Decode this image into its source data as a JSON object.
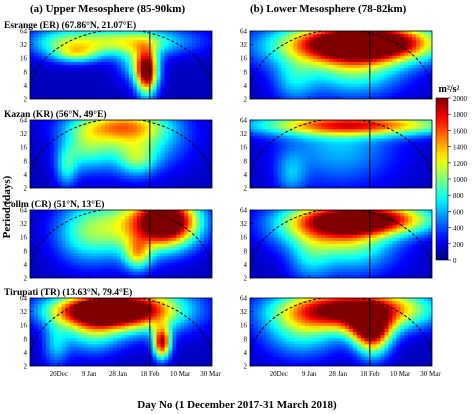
{
  "figure": {
    "column_titles": [
      "(a) Upper Mesosphere (85-90km)",
      "(b) Lower Mesosphere (78-82km)"
    ],
    "ylabel": "Period (days)",
    "xlabel": "Day No (1 December 2017-31 March 2018)",
    "colorbar": {
      "unit": "m²/s²",
      "min": 0,
      "max": 2000,
      "ticks": [
        "0",
        "200",
        "400",
        "600",
        "800",
        "1000",
        "1200",
        "1400",
        "1600",
        "1800",
        "2000"
      ],
      "colors": [
        "#00007f",
        "#0000ff",
        "#007fff",
        "#00ffff",
        "#7fff7f",
        "#ffff00",
        "#ff7f00",
        "#ff0000",
        "#7f0000"
      ]
    }
  },
  "chart_data": {
    "type": "heatmap",
    "x_axis": {
      "range": [
        "1 Dec 2017",
        "31 Mar 2018"
      ],
      "ticks": [
        "20Dec",
        "9 Jan",
        "28 Jan",
        "18 Feb",
        "10 Mar",
        "30 Mar"
      ],
      "tick_days": [
        20,
        40,
        59,
        80,
        100,
        120
      ],
      "marker_line": "18 Feb"
    },
    "y_axis": {
      "scale": "log2",
      "range": [
        2,
        64
      ],
      "ticks": [
        "2",
        "4",
        "8",
        "16",
        "32",
        "64"
      ],
      "tick_values": [
        2,
        4,
        8,
        16,
        32,
        64
      ]
    },
    "panels": [
      {
        "column": "a",
        "row": 1,
        "station": "Esrange (ER) (67.86°N, 21.07°E)",
        "blobs": [
          {
            "day": 62,
            "period": 38,
            "amp": 1000,
            "sd": 30,
            "sp": 0.18
          },
          {
            "day": 32,
            "period": 20,
            "amp": 650,
            "sd": 11,
            "sp": 0.12
          },
          {
            "day": 22,
            "period": 36,
            "amp": 480,
            "sd": 16,
            "sp": 0.2
          },
          {
            "day": 78,
            "period": 7.5,
            "amp": 1750,
            "sd": 5,
            "sp": 0.28
          },
          {
            "day": 72,
            "period": 13,
            "amp": 600,
            "sd": 9,
            "sp": 0.25
          }
        ]
      },
      {
        "column": "a",
        "row": 2,
        "station": "Kazan (KR) (56°N, 49°E)",
        "blobs": [
          {
            "day": 68,
            "period": 26,
            "amp": 900,
            "sd": 22,
            "sp": 0.4
          },
          {
            "day": 58,
            "period": 48,
            "amp": 700,
            "sd": 22,
            "sp": 0.18
          },
          {
            "day": 36,
            "period": 16,
            "amp": 560,
            "sd": 11,
            "sp": 0.3
          },
          {
            "day": 25,
            "period": 5.5,
            "amp": 520,
            "sd": 5,
            "sp": 0.25
          },
          {
            "day": 72,
            "period": 8,
            "amp": 450,
            "sd": 8,
            "sp": 0.2
          }
        ]
      },
      {
        "column": "a",
        "row": 3,
        "station": "Collm (CR) (51°N, 13°E)",
        "blobs": [
          {
            "day": 92,
            "period": 36,
            "amp": 2000,
            "sd": 14,
            "sp": 0.3
          },
          {
            "day": 68,
            "period": 28,
            "amp": 950,
            "sd": 22,
            "sp": 0.4
          },
          {
            "day": 36,
            "period": 20,
            "amp": 550,
            "sd": 14,
            "sp": 0.4
          },
          {
            "day": 72,
            "period": 6.5,
            "amp": 800,
            "sd": 6,
            "sp": 0.2
          }
        ]
      },
      {
        "column": "a",
        "row": 4,
        "station": "Tirupati (TR) (13.63°N, 79.4°E)",
        "blobs": [
          {
            "day": 48,
            "period": 34,
            "amp": 1800,
            "sd": 24,
            "sp": 0.2
          },
          {
            "day": 70,
            "period": 36,
            "amp": 1200,
            "sd": 26,
            "sp": 0.3
          },
          {
            "day": 88,
            "period": 6.5,
            "amp": 1700,
            "sd": 4,
            "sp": 0.2
          },
          {
            "day": 42,
            "period": 12,
            "amp": 650,
            "sd": 14,
            "sp": 0.3
          },
          {
            "day": 18,
            "period": 6,
            "amp": 450,
            "sd": 6,
            "sp": 0.3
          }
        ]
      },
      {
        "column": "b",
        "row": 1,
        "station": "",
        "blobs": [
          {
            "day": 78,
            "period": 36,
            "amp": 2100,
            "sd": 30,
            "sp": 0.22
          },
          {
            "day": 60,
            "period": 28,
            "amp": 850,
            "sd": 38,
            "sp": 0.3
          },
          {
            "day": 70,
            "period": 8,
            "amp": 650,
            "sd": 22,
            "sp": 0.35
          },
          {
            "day": 30,
            "period": 5,
            "amp": 450,
            "sd": 10,
            "sp": 0.3
          }
        ]
      },
      {
        "column": "b",
        "row": 2,
        "station": "",
        "blobs": [
          {
            "day": 72,
            "period": 50,
            "amp": 1400,
            "sd": 48,
            "sp": 0.14
          },
          {
            "day": 60,
            "period": 16,
            "amp": 500,
            "sd": 26,
            "sp": 0.5
          },
          {
            "day": 28,
            "period": 4,
            "amp": 380,
            "sd": 7,
            "sp": 0.3
          }
        ]
      },
      {
        "column": "b",
        "row": 3,
        "station": "",
        "blobs": [
          {
            "day": 80,
            "period": 40,
            "amp": 1900,
            "sd": 28,
            "sp": 0.2
          },
          {
            "day": 45,
            "period": 28,
            "amp": 900,
            "sd": 22,
            "sp": 0.3
          },
          {
            "day": 70,
            "period": 12,
            "amp": 700,
            "sd": 20,
            "sp": 0.4
          },
          {
            "day": 40,
            "period": 5,
            "amp": 400,
            "sd": 10,
            "sp": 0.3
          }
        ]
      },
      {
        "column": "b",
        "row": 4,
        "station": "",
        "blobs": [
          {
            "day": 70,
            "period": 36,
            "amp": 2100,
            "sd": 32,
            "sp": 0.25
          },
          {
            "day": 80,
            "period": 14,
            "amp": 1300,
            "sd": 10,
            "sp": 0.2
          },
          {
            "day": 35,
            "period": 12,
            "amp": 650,
            "sd": 18,
            "sp": 0.35
          },
          {
            "day": 82,
            "period": 7,
            "amp": 900,
            "sd": 8,
            "sp": 0.25
          }
        ]
      }
    ]
  }
}
